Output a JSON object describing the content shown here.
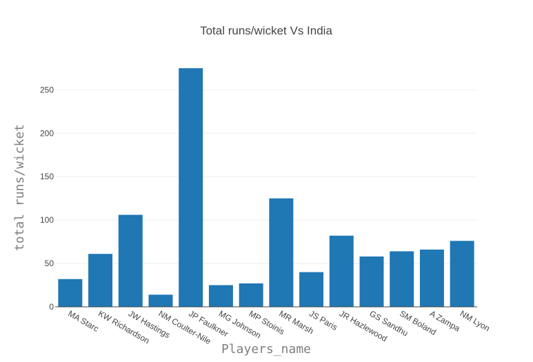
{
  "chart_data": {
    "type": "bar",
    "title": "Total runs/wicket Vs India",
    "xlabel": "Players_name",
    "ylabel": "total runs/wicket",
    "categories": [
      "MA Starc",
      "KW Richardson",
      "JW Hastings",
      "NM Coulter-Nile",
      "JP Faulkner",
      "MG Johnson",
      "MP Stoinis",
      "MR Marsh",
      "JS Paris",
      "JR Hazlewood",
      "GS Sandhu",
      "SM Boland",
      "A Zampa",
      "NM Lyon"
    ],
    "values": [
      32,
      61,
      106,
      14,
      275,
      25,
      27,
      125,
      40,
      82,
      58,
      64,
      66,
      76
    ],
    "ylim": [
      0,
      290
    ],
    "yticks": [
      "0",
      "50",
      "100",
      "150",
      "200",
      "250"
    ],
    "bar_color": "#1f77b4",
    "grid": true
  }
}
